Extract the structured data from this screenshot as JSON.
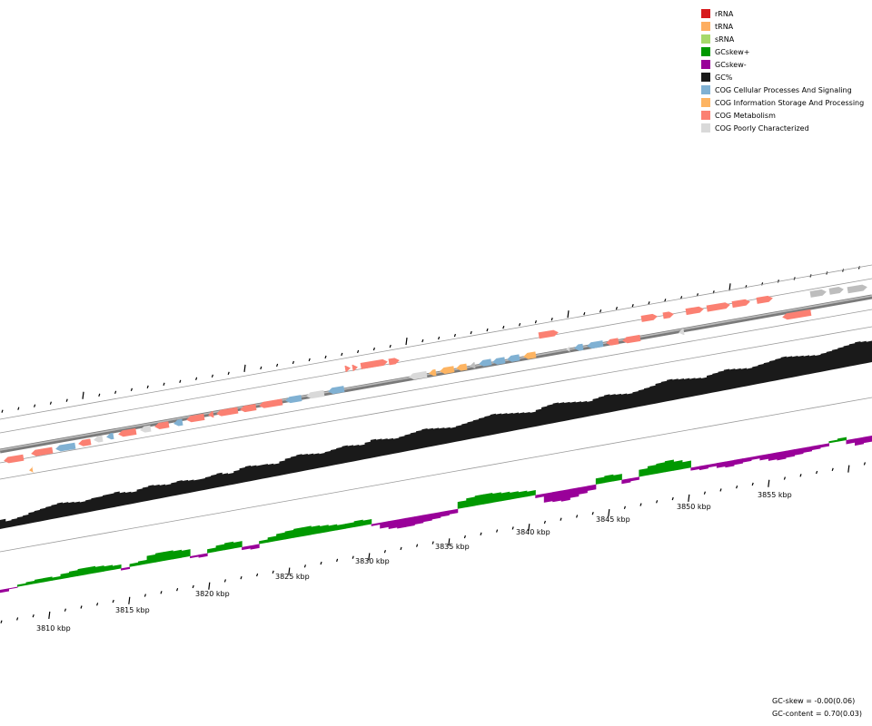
{
  "legend": [
    {
      "label": "rRNA",
      "color": "#d7191c"
    },
    {
      "label": "tRNA",
      "color": "#fdae61"
    },
    {
      "label": "sRNA",
      "color": "#a6d96a"
    },
    {
      "label": "GCskew+",
      "color": "#009900"
    },
    {
      "label": "GCskew-",
      "color": "#990099"
    },
    {
      "label": "GC%",
      "color": "#1a1a1a"
    },
    {
      "label": "COG Cellular Processes And Signaling",
      "color": "#80b1d3"
    },
    {
      "label": "COG Information Storage And Processing",
      "color": "#fdb462"
    },
    {
      "label": "COG Metabolism",
      "color": "#fb8072"
    },
    {
      "label": "COG Poorly Characterized",
      "color": "#d9d9d9"
    }
  ],
  "axis": {
    "labels": [
      "3810 kbp",
      "3815 kbp",
      "3820 kbp",
      "3825 kbp",
      "3830 kbp",
      "3835 kbp",
      "3840 kbp",
      "3845 kbp",
      "3850 kbp",
      "3855 kbp"
    ]
  },
  "stats": {
    "gc_skew": "GC-skew = -0.00(0.06)",
    "gc_content": "GC-content = 0.70(0.03)"
  }
}
